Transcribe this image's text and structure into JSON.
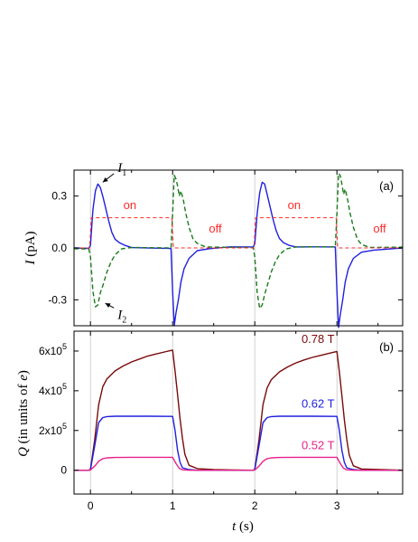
{
  "chart_data": [
    {
      "type": "line",
      "panel_label": "(a)",
      "ylabel_italic": "I",
      "ylabel_unit": " (pA)",
      "xlim": [
        -0.2,
        3.8
      ],
      "ylim": [
        -0.45,
        0.45
      ],
      "y_ticks": [
        -0.3,
        0.0,
        0.3
      ],
      "y_tick_labels": [
        "-0.3",
        "0.0",
        "0.3"
      ],
      "x_ticks": [
        0,
        1,
        2,
        3
      ],
      "grid": false,
      "vertical_markers": [
        0,
        1,
        2,
        3
      ],
      "series": [
        {
          "name": "I",
          "name_sub": "1",
          "color": "#1f1fe0",
          "dash": "solid",
          "x": [
            -0.2,
            -0.02,
            0.0,
            0.03,
            0.06,
            0.09,
            0.12,
            0.15,
            0.18,
            0.22,
            0.26,
            0.3,
            0.35,
            0.42,
            0.5,
            0.7,
            0.98,
            1.0,
            1.02,
            1.04,
            1.07,
            1.1,
            1.14,
            1.2,
            1.3,
            1.45,
            1.7,
            1.98,
            2.0,
            2.03,
            2.06,
            2.09,
            2.12,
            2.15,
            2.18,
            2.22,
            2.26,
            2.3,
            2.35,
            2.42,
            2.5,
            2.7,
            2.98,
            3.0,
            3.02,
            3.04,
            3.07,
            3.1,
            3.14,
            3.2,
            3.3,
            3.45,
            3.8
          ],
          "y": [
            0.0,
            0.0,
            0.02,
            0.22,
            0.33,
            0.37,
            0.35,
            0.3,
            0.24,
            0.16,
            0.09,
            0.05,
            0.025,
            0.01,
            0.0,
            0.0,
            0.0,
            -0.25,
            -0.45,
            -0.38,
            -0.3,
            -0.2,
            -0.12,
            -0.06,
            -0.02,
            -0.01,
            0.0,
            0.0,
            0.02,
            0.2,
            0.32,
            0.38,
            0.37,
            0.31,
            0.25,
            0.17,
            0.1,
            0.055,
            0.028,
            0.01,
            0.0,
            0.0,
            0.0,
            -0.25,
            -0.46,
            -0.39,
            -0.3,
            -0.2,
            -0.12,
            -0.06,
            -0.02,
            -0.01,
            0.0
          ]
        },
        {
          "name": "I",
          "name_sub": "2",
          "color": "#1a7a1a",
          "dash": "dashed",
          "x": [
            -0.2,
            -0.02,
            0.0,
            0.03,
            0.06,
            0.09,
            0.12,
            0.15,
            0.2,
            0.25,
            0.3,
            0.38,
            0.5,
            0.98,
            1.0,
            1.02,
            1.04,
            1.06,
            1.08,
            1.1,
            1.13,
            1.16,
            1.2,
            1.25,
            1.3,
            1.4,
            1.6,
            1.98,
            2.0,
            2.03,
            2.06,
            2.09,
            2.12,
            2.15,
            2.2,
            2.25,
            2.3,
            2.38,
            2.5,
            2.98,
            3.0,
            3.02,
            3.04,
            3.06,
            3.08,
            3.1,
            3.13,
            3.16,
            3.2,
            3.25,
            3.3,
            3.4,
            3.8
          ],
          "y": [
            0.0,
            0.0,
            -0.05,
            -0.25,
            -0.34,
            -0.33,
            -0.26,
            -0.22,
            -0.14,
            -0.08,
            -0.04,
            -0.01,
            0.0,
            0.0,
            0.2,
            0.42,
            0.4,
            0.36,
            0.3,
            0.33,
            0.28,
            0.2,
            0.12,
            0.05,
            0.02,
            0.0,
            0.0,
            0.0,
            -0.05,
            -0.26,
            -0.35,
            -0.33,
            -0.27,
            -0.22,
            -0.14,
            -0.08,
            -0.04,
            -0.01,
            0.0,
            0.0,
            0.2,
            0.43,
            0.42,
            0.37,
            0.31,
            0.34,
            0.28,
            0.2,
            0.12,
            0.05,
            0.02,
            0.0,
            0.0
          ]
        },
        {
          "name": "",
          "color": "#ff2a2a",
          "dash": "dashed",
          "x": [
            -0.2,
            -0.01,
            0.01,
            0.99,
            1.01,
            1.99,
            2.01,
            2.99,
            3.01,
            3.8
          ],
          "y": [
            0.0,
            0.0,
            0.175,
            0.175,
            0.0,
            0.0,
            0.175,
            0.175,
            0.0,
            0.0
          ]
        }
      ],
      "annotations": [
        {
          "text": "on",
          "x": 0.48,
          "y": 0.225,
          "color": "#ff2a2a"
        },
        {
          "text": "off",
          "x": 1.52,
          "y": 0.09,
          "color": "#ff2a2a"
        },
        {
          "text": "on",
          "x": 2.48,
          "y": 0.225,
          "color": "#ff2a2a"
        },
        {
          "text": "off",
          "x": 3.52,
          "y": 0.09,
          "color": "#ff2a2a"
        }
      ],
      "series_labels": [
        {
          "name": "I",
          "sub": "1",
          "x": 0.33,
          "y": 0.44,
          "arrow_to": [
            0.15,
            0.38
          ]
        },
        {
          "name": "I",
          "sub": "2",
          "x": 0.33,
          "y": -0.41,
          "arrow_to": [
            0.18,
            -0.32
          ]
        }
      ]
    },
    {
      "type": "line",
      "panel_label": "(b)",
      "ylabel_italic_1": "Q",
      "ylabel_mid": " (in units of ",
      "ylabel_italic_2": "e",
      "ylabel_end": ")",
      "xlabel_italic": "t",
      "xlabel_unit": " (s)",
      "xlim": [
        -0.2,
        3.8
      ],
      "ylim": [
        -120000,
        700000
      ],
      "y_ticks": [
        0,
        200000,
        400000,
        600000
      ],
      "y_tick_labels": [
        {
          "base": "0",
          "exp": ""
        },
        {
          "base": "2x10",
          "exp": "5"
        },
        {
          "base": "4x10",
          "exp": "5"
        },
        {
          "base": "6x10",
          "exp": "5"
        }
      ],
      "x_ticks": [
        0,
        1,
        2,
        3
      ],
      "x_tick_labels": [
        "0",
        "1",
        "2",
        "3"
      ],
      "grid": false,
      "vertical_markers": [
        0,
        1,
        2,
        3
      ],
      "series": [
        {
          "name": "0.78 T",
          "color": "#7a0a0a",
          "x": [
            -0.2,
            -0.02,
            0.0,
            0.05,
            0.1,
            0.15,
            0.2,
            0.3,
            0.4,
            0.5,
            0.6,
            0.7,
            0.8,
            0.9,
            1.0,
            1.03,
            1.06,
            1.09,
            1.12,
            1.15,
            1.2,
            1.3,
            1.5,
            1.98,
            2.0,
            2.05,
            2.1,
            2.15,
            2.2,
            2.3,
            2.4,
            2.5,
            2.6,
            2.7,
            2.8,
            2.9,
            3.0,
            3.03,
            3.06,
            3.09,
            3.12,
            3.15,
            3.2,
            3.3,
            3.8
          ],
          "y": [
            0,
            0,
            5000,
            150000,
            330000,
            420000,
            460000,
            500000,
            525000,
            545000,
            560000,
            575000,
            585000,
            595000,
            605000,
            500000,
            380000,
            260000,
            160000,
            80000,
            25000,
            8000,
            3000,
            0,
            5000,
            150000,
            330000,
            415000,
            455000,
            495000,
            520000,
            540000,
            555000,
            568000,
            578000,
            588000,
            598000,
            495000,
            375000,
            255000,
            155000,
            75000,
            22000,
            6000,
            0
          ]
        },
        {
          "name": "0.62 T",
          "color": "#1f1fe0",
          "x": [
            -0.2,
            -0.02,
            0.0,
            0.05,
            0.1,
            0.15,
            0.2,
            0.3,
            0.5,
            0.7,
            1.0,
            1.03,
            1.06,
            1.09,
            1.12,
            1.2,
            1.3,
            1.5,
            1.98,
            2.0,
            2.05,
            2.1,
            2.15,
            2.2,
            2.3,
            2.5,
            2.7,
            3.0,
            3.03,
            3.06,
            3.09,
            3.12,
            3.2,
            3.3,
            3.8
          ],
          "y": [
            0,
            0,
            3000,
            120000,
            240000,
            265000,
            270000,
            272000,
            272000,
            272000,
            271000,
            200000,
            100000,
            40000,
            12000,
            3000,
            0,
            0,
            0,
            3000,
            120000,
            240000,
            265000,
            270000,
            272000,
            272000,
            272000,
            271000,
            200000,
            100000,
            40000,
            12000,
            3000,
            0,
            0
          ]
        },
        {
          "name": "0.52 T",
          "color": "#e8208a",
          "x": [
            -0.2,
            -0.02,
            0.0,
            0.05,
            0.1,
            0.15,
            0.2,
            0.3,
            0.5,
            0.7,
            1.0,
            1.04,
            1.08,
            1.12,
            1.2,
            1.5,
            1.98,
            2.0,
            2.05,
            2.1,
            2.15,
            2.2,
            2.3,
            2.5,
            2.7,
            3.0,
            3.04,
            3.08,
            3.12,
            3.2,
            3.8
          ],
          "y": [
            0,
            0,
            1000,
            20000,
            45000,
            58000,
            62000,
            64000,
            65000,
            65000,
            65000,
            35000,
            10000,
            2000,
            0,
            0,
            0,
            1000,
            20000,
            45000,
            58000,
            62000,
            64000,
            65000,
            65000,
            65000,
            35000,
            10000,
            2000,
            0,
            0
          ]
        }
      ],
      "annotations": [
        {
          "text": "0.78 T",
          "x": 2.77,
          "y": 640000,
          "color": "#7a0a0a"
        },
        {
          "text": "0.62 T",
          "x": 2.77,
          "y": 315000,
          "color": "#1f1fe0"
        },
        {
          "text": "0.52 T",
          "x": 2.77,
          "y": 105000,
          "color": "#e8208a"
        }
      ]
    }
  ]
}
